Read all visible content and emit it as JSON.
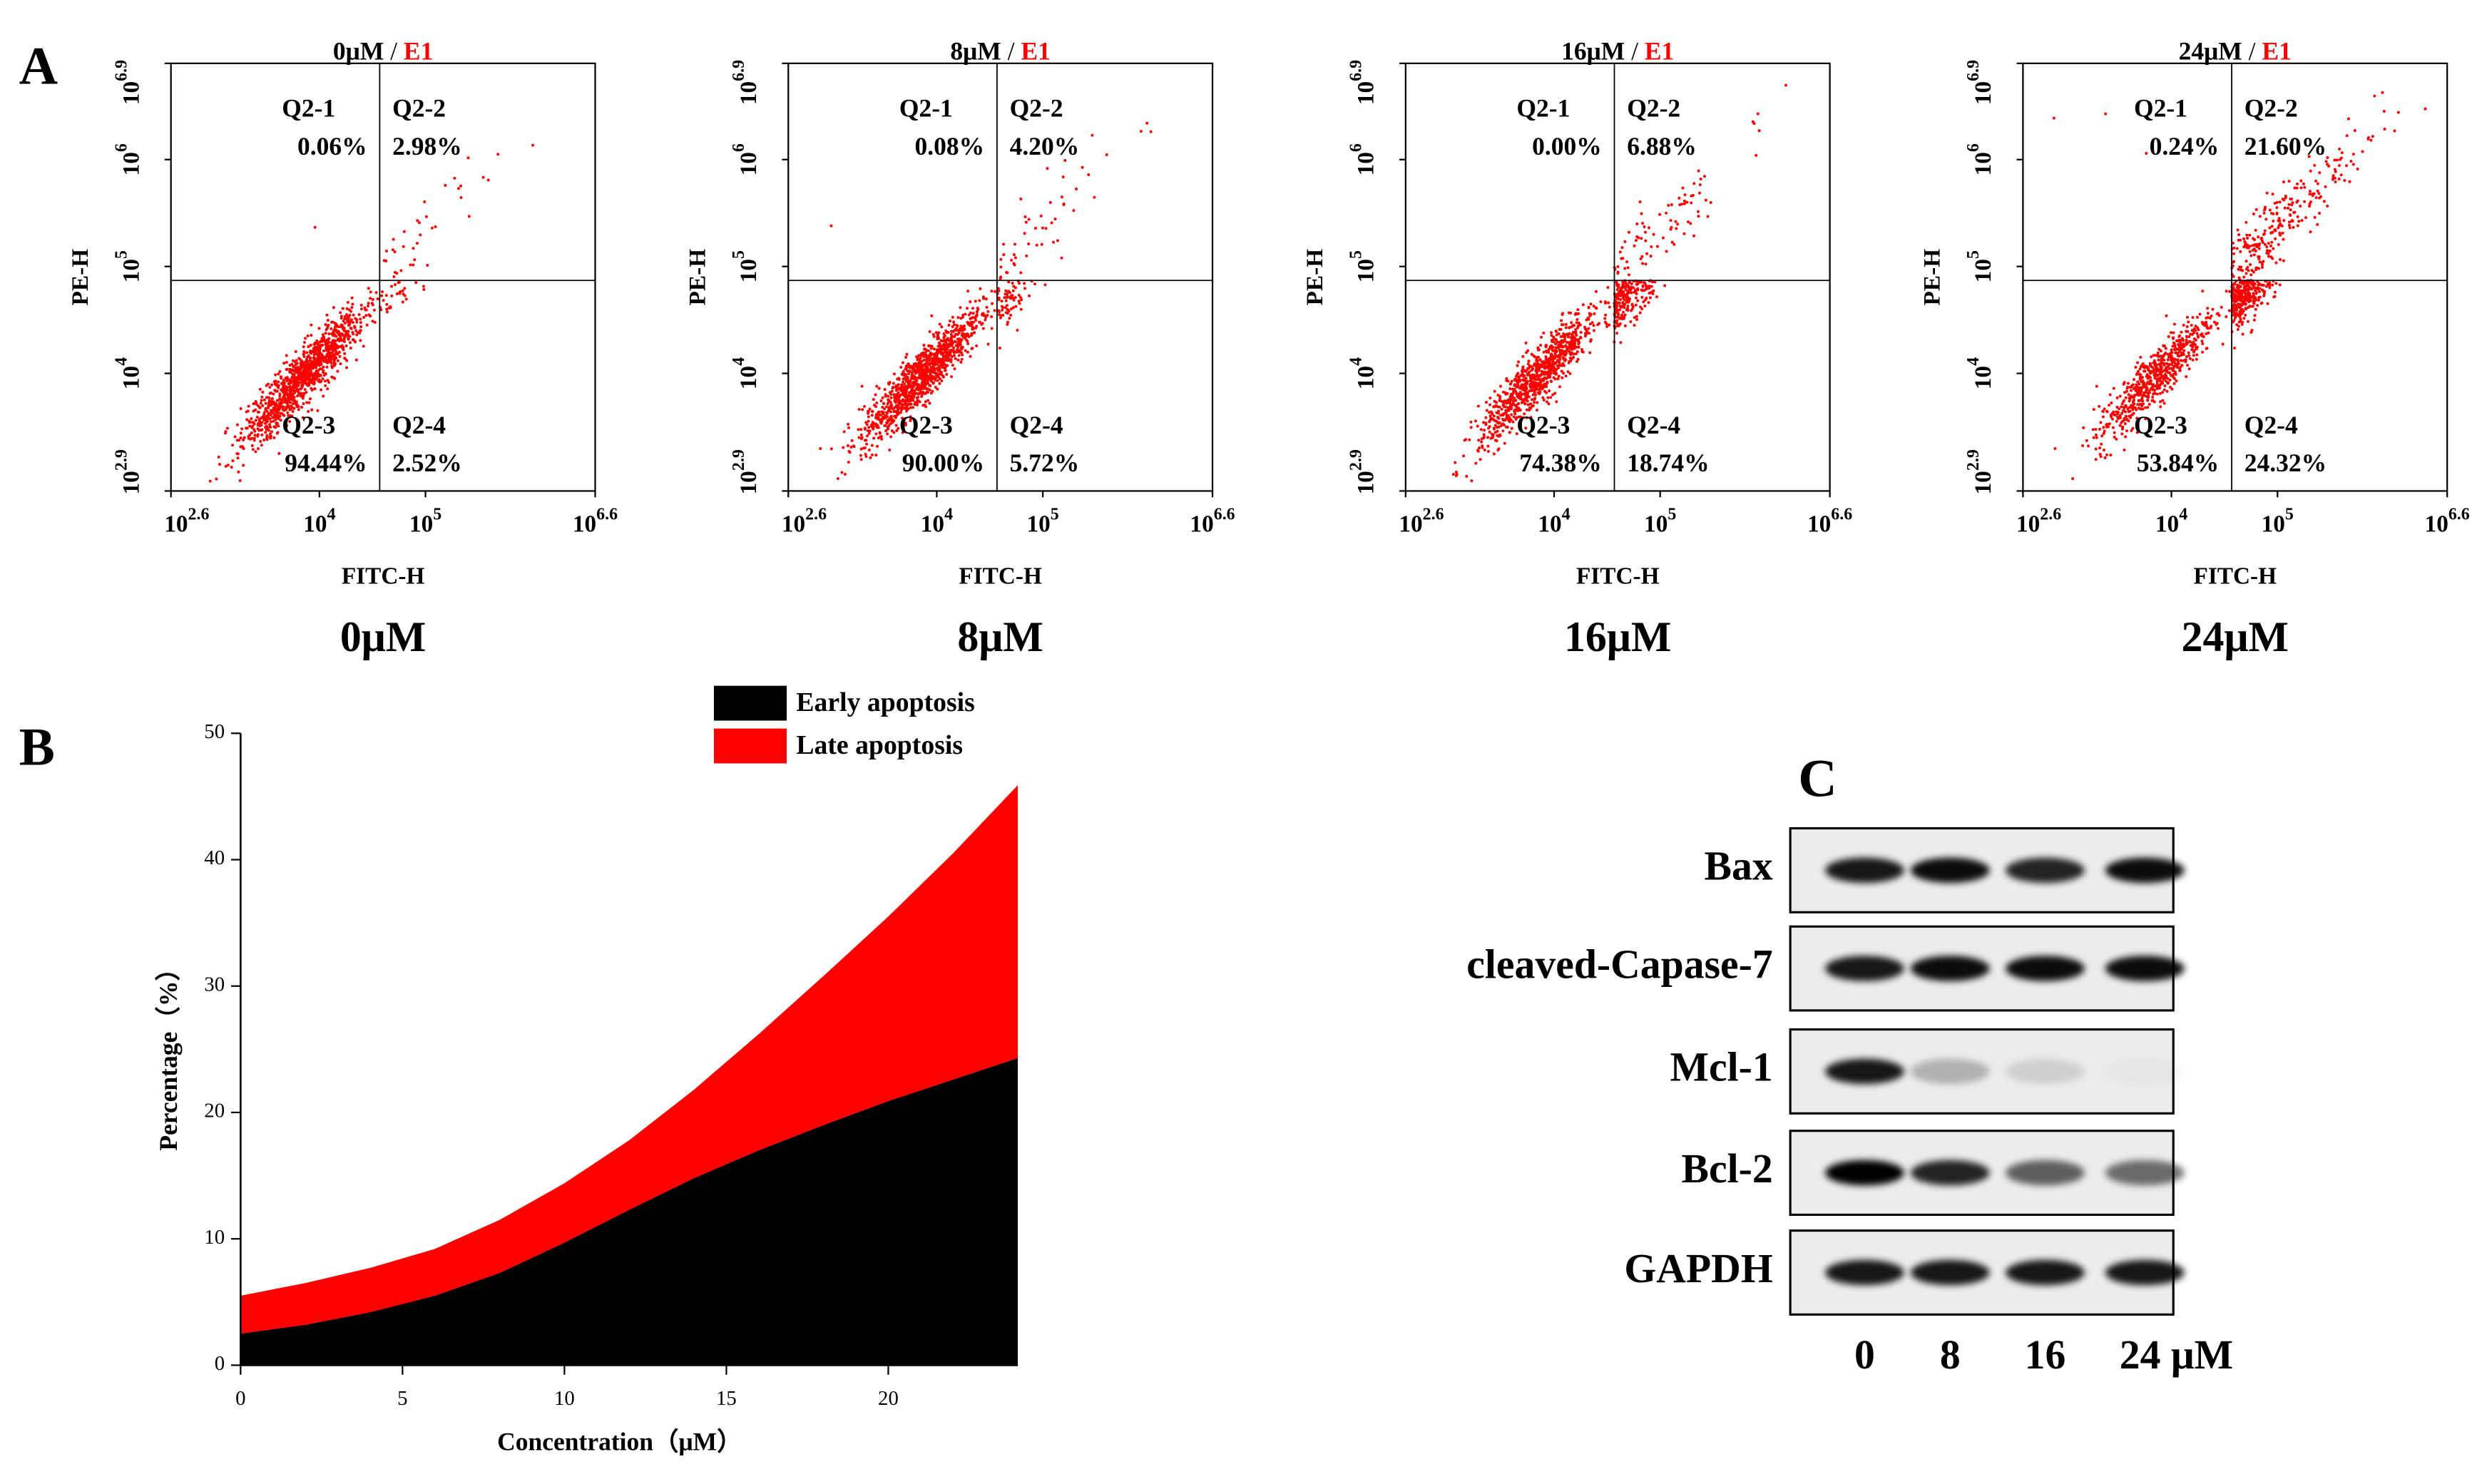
{
  "chart_data": [
    {
      "type": "flow",
      "panel_label": "A",
      "title": "0μM",
      "title_separator": "/",
      "title_sample": "E1",
      "title_sample_color": "#ff0000",
      "xlabel": "FITC-H",
      "ylabel": "PE-H",
      "xscale": "log",
      "yscale": "log",
      "xlim": [
        398.1,
        3981071.7
      ],
      "ylim": [
        794.3,
        7943282.3
      ],
      "xticks": [
        {
          "value": 398.1,
          "label": "10",
          "exponent": "2.6"
        },
        {
          "value": 10000,
          "label": "10",
          "exponent": "4"
        },
        {
          "value": 100000,
          "label": "10",
          "exponent": "5"
        },
        {
          "value": 3981071.7,
          "label": "10",
          "exponent": "6.6"
        }
      ],
      "yticks": [
        {
          "value": 794.3,
          "label": "10",
          "exponent": "2.9"
        },
        {
          "value": 10000,
          "label": "10",
          "exponent": "4"
        },
        {
          "value": 100000,
          "label": "10",
          "exponent": "5"
        },
        {
          "value": 1000000,
          "label": "10",
          "exponent": "6"
        },
        {
          "value": 7943282.3,
          "label": "10",
          "exponent": "6.9"
        }
      ],
      "quadrant_gate_x": 37000,
      "quadrant_gate_y": 74000,
      "color": "#ff0000",
      "quadrants": [
        "Q2-1",
        "Q2-2",
        "Q2-3",
        "Q2-4"
      ],
      "values": [
        0.06,
        2.98,
        94.44,
        2.52
      ],
      "value_labels": [
        "0.06%",
        "2.98%",
        "94.44%",
        "2.52%"
      ],
      "caption": "0μM"
    },
    {
      "type": "flow",
      "title": "8μM",
      "title_separator": "/",
      "title_sample": "E1",
      "title_sample_color": "#ff0000",
      "xlabel": "FITC-H",
      "ylabel": "PE-H",
      "xscale": "log",
      "yscale": "log",
      "xlim": [
        398.1,
        3981071.7
      ],
      "ylim": [
        794.3,
        7943282.3
      ],
      "xticks": [
        {
          "value": 398.1,
          "label": "10",
          "exponent": "2.6"
        },
        {
          "value": 10000,
          "label": "10",
          "exponent": "4"
        },
        {
          "value": 100000,
          "label": "10",
          "exponent": "5"
        },
        {
          "value": 3981071.7,
          "label": "10",
          "exponent": "6.6"
        }
      ],
      "yticks": [
        {
          "value": 794.3,
          "label": "10",
          "exponent": "2.9"
        },
        {
          "value": 10000,
          "label": "10",
          "exponent": "4"
        },
        {
          "value": 100000,
          "label": "10",
          "exponent": "5"
        },
        {
          "value": 1000000,
          "label": "10",
          "exponent": "6"
        },
        {
          "value": 7943282.3,
          "label": "10",
          "exponent": "6.9"
        }
      ],
      "quadrant_gate_x": 37000,
      "quadrant_gate_y": 74000,
      "color": "#ff0000",
      "quadrants": [
        "Q2-1",
        "Q2-2",
        "Q2-3",
        "Q2-4"
      ],
      "values": [
        0.08,
        4.2,
        90.0,
        5.72
      ],
      "value_labels": [
        "0.08%",
        "4.20%",
        "90.00%",
        "5.72%"
      ],
      "caption": "8μM"
    },
    {
      "type": "flow",
      "title": "16μM",
      "title_separator": "/",
      "title_sample": "E1",
      "title_sample_color": "#ff0000",
      "xlabel": "FITC-H",
      "ylabel": "PE-H",
      "xscale": "log",
      "yscale": "log",
      "xlim": [
        398.1,
        3981071.7
      ],
      "ylim": [
        794.3,
        7943282.3
      ],
      "xticks": [
        {
          "value": 398.1,
          "label": "10",
          "exponent": "2.6"
        },
        {
          "value": 10000,
          "label": "10",
          "exponent": "4"
        },
        {
          "value": 100000,
          "label": "10",
          "exponent": "5"
        },
        {
          "value": 3981071.7,
          "label": "10",
          "exponent": "6.6"
        }
      ],
      "yticks": [
        {
          "value": 794.3,
          "label": "10",
          "exponent": "2.9"
        },
        {
          "value": 10000,
          "label": "10",
          "exponent": "4"
        },
        {
          "value": 100000,
          "label": "10",
          "exponent": "5"
        },
        {
          "value": 1000000,
          "label": "10",
          "exponent": "6"
        },
        {
          "value": 7943282.3,
          "label": "10",
          "exponent": "6.9"
        }
      ],
      "quadrant_gate_x": 37000,
      "quadrant_gate_y": 74000,
      "color": "#ff0000",
      "quadrants": [
        "Q2-1",
        "Q2-2",
        "Q2-3",
        "Q2-4"
      ],
      "values": [
        0.0,
        6.88,
        74.38,
        18.74
      ],
      "value_labels": [
        "0.00%",
        "6.88%",
        "74.38%",
        "18.74%"
      ],
      "caption": "16μM"
    },
    {
      "type": "flow",
      "title": "24μM",
      "title_separator": "/",
      "title_sample": "E1",
      "title_sample_color": "#ff0000",
      "xlabel": "FITC-H",
      "ylabel": "PE-H",
      "xscale": "log",
      "yscale": "log",
      "xlim": [
        398.1,
        3981071.7
      ],
      "ylim": [
        794.3,
        7943282.3
      ],
      "xticks": [
        {
          "value": 398.1,
          "label": "10",
          "exponent": "2.6"
        },
        {
          "value": 10000,
          "label": "10",
          "exponent": "4"
        },
        {
          "value": 100000,
          "label": "10",
          "exponent": "5"
        },
        {
          "value": 3981071.7,
          "label": "10",
          "exponent": "6.6"
        }
      ],
      "yticks": [
        {
          "value": 794.3,
          "label": "10",
          "exponent": "2.9"
        },
        {
          "value": 10000,
          "label": "10",
          "exponent": "4"
        },
        {
          "value": 100000,
          "label": "10",
          "exponent": "5"
        },
        {
          "value": 1000000,
          "label": "10",
          "exponent": "6"
        },
        {
          "value": 7943282.3,
          "label": "10",
          "exponent": "6.9"
        }
      ],
      "quadrant_gate_x": 37000,
      "quadrant_gate_y": 74000,
      "color": "#ff0000",
      "quadrants": [
        "Q2-1",
        "Q2-2",
        "Q2-3",
        "Q2-4"
      ],
      "values": [
        0.24,
        21.6,
        53.84,
        24.32
      ],
      "value_labels": [
        "0.24%",
        "21.60%",
        "53.84%",
        "24.32%"
      ],
      "caption": "24μM"
    },
    {
      "type": "stacked_area",
      "panel_label": "B",
      "xlabel": "Concentration（μM）",
      "ylabel": "Percentage（%）",
      "x": [
        0,
        2,
        4,
        6,
        8,
        10,
        12,
        14,
        16,
        18,
        20,
        22,
        24
      ],
      "series": [
        {
          "name": "Early apoptosis",
          "color": "#000000",
          "values": [
            2.5,
            3.2,
            4.2,
            5.5,
            7.3,
            9.7,
            12.3,
            14.8,
            17.0,
            19.0,
            20.9,
            22.6,
            24.3
          ]
        },
        {
          "name": "Late apoptosis",
          "color": "#ff0000",
          "values": [
            3.0,
            3.3,
            3.5,
            3.7,
            4.2,
            4.7,
            5.5,
            7.0,
            9.2,
            11.8,
            14.6,
            17.9,
            21.6
          ]
        }
      ],
      "xlim": [
        0,
        24
      ],
      "ylim": [
        0,
        50
      ],
      "xticks": [
        0,
        5,
        10,
        15,
        20
      ],
      "yticks": [
        0,
        10,
        20,
        30,
        40,
        50
      ],
      "legend": "top-right"
    },
    {
      "type": "blot",
      "panel_label": "C",
      "categories": [
        "0",
        "8",
        "16",
        "24 μM"
      ],
      "color": "#000000",
      "series": [
        {
          "name": "Bax",
          "values": [
            0.9,
            0.95,
            0.85,
            0.95
          ]
        },
        {
          "name": "cleaved-Capase-7",
          "values": [
            0.9,
            0.95,
            0.95,
            0.95
          ]
        },
        {
          "name": "Mcl-1",
          "values": [
            0.9,
            0.25,
            0.12,
            0.03
          ]
        },
        {
          "name": "Bcl-2",
          "values": [
            1.0,
            0.85,
            0.6,
            0.55
          ]
        },
        {
          "name": "GAPDH",
          "values": [
            0.9,
            0.9,
            0.9,
            0.9
          ]
        }
      ]
    }
  ]
}
